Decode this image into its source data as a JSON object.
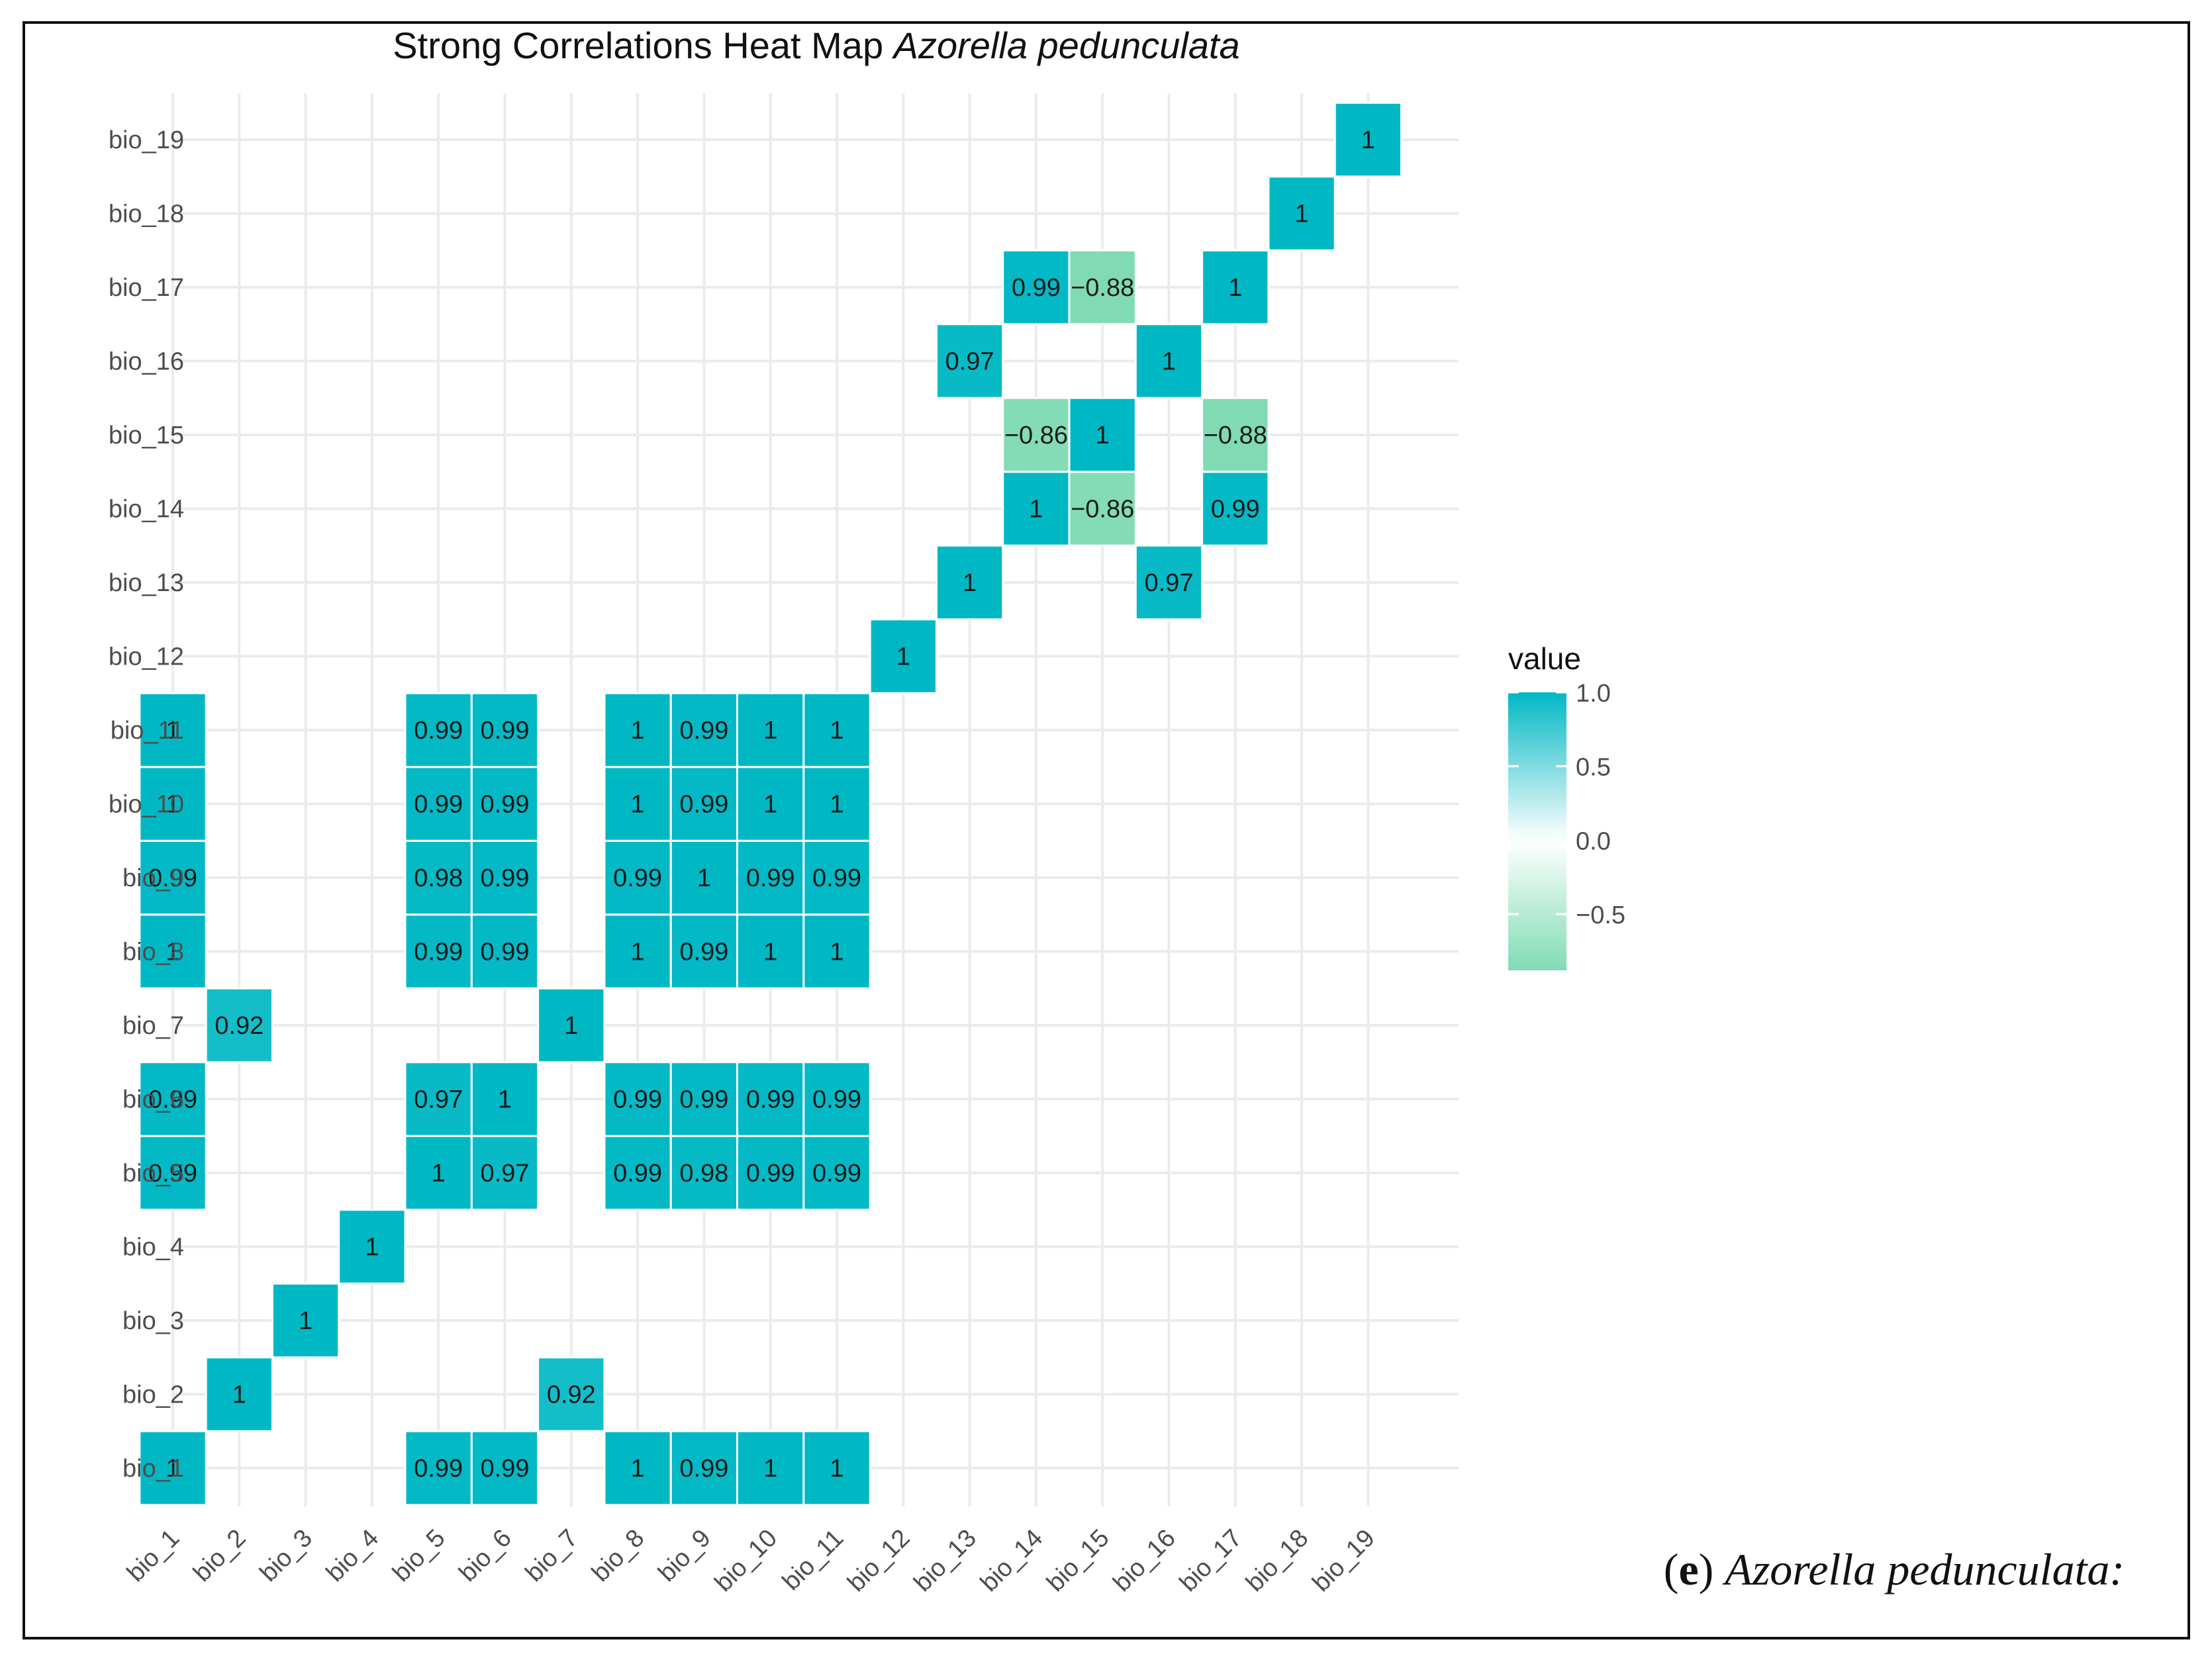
{
  "chart_data": {
    "type": "heatmap",
    "title_main": "Strong Correlations Heat Map ",
    "title_species": "Azorella pedunculata",
    "variables": [
      "bio_1",
      "bio_2",
      "bio_3",
      "bio_4",
      "bio_5",
      "bio_6",
      "bio_7",
      "bio_8",
      "bio_9",
      "bio_10",
      "bio_11",
      "bio_12",
      "bio_13",
      "bio_14",
      "bio_15",
      "bio_16",
      "bio_17",
      "bio_18",
      "bio_19"
    ],
    "cells": [
      {
        "x": "bio_1",
        "y": "bio_1",
        "value": 1,
        "label": "1"
      },
      {
        "x": "bio_5",
        "y": "bio_1",
        "value": 0.99,
        "label": "0.99"
      },
      {
        "x": "bio_6",
        "y": "bio_1",
        "value": 0.99,
        "label": "0.99"
      },
      {
        "x": "bio_8",
        "y": "bio_1",
        "value": 1,
        "label": "1"
      },
      {
        "x": "bio_9",
        "y": "bio_1",
        "value": 0.99,
        "label": "0.99"
      },
      {
        "x": "bio_10",
        "y": "bio_1",
        "value": 1,
        "label": "1"
      },
      {
        "x": "bio_11",
        "y": "bio_1",
        "value": 1,
        "label": "1"
      },
      {
        "x": "bio_2",
        "y": "bio_2",
        "value": 1,
        "label": "1"
      },
      {
        "x": "bio_7",
        "y": "bio_2",
        "value": 0.92,
        "label": "0.92"
      },
      {
        "x": "bio_3",
        "y": "bio_3",
        "value": 1,
        "label": "1"
      },
      {
        "x": "bio_4",
        "y": "bio_4",
        "value": 1,
        "label": "1"
      },
      {
        "x": "bio_1",
        "y": "bio_5",
        "value": 0.99,
        "label": "0.99"
      },
      {
        "x": "bio_5",
        "y": "bio_5",
        "value": 1,
        "label": "1"
      },
      {
        "x": "bio_6",
        "y": "bio_5",
        "value": 0.97,
        "label": "0.97"
      },
      {
        "x": "bio_8",
        "y": "bio_5",
        "value": 0.99,
        "label": "0.99"
      },
      {
        "x": "bio_9",
        "y": "bio_5",
        "value": 0.98,
        "label": "0.98"
      },
      {
        "x": "bio_10",
        "y": "bio_5",
        "value": 0.99,
        "label": "0.99"
      },
      {
        "x": "bio_11",
        "y": "bio_5",
        "value": 0.99,
        "label": "0.99"
      },
      {
        "x": "bio_1",
        "y": "bio_6",
        "value": 0.99,
        "label": "0.99"
      },
      {
        "x": "bio_5",
        "y": "bio_6",
        "value": 0.97,
        "label": "0.97"
      },
      {
        "x": "bio_6",
        "y": "bio_6",
        "value": 1,
        "label": "1"
      },
      {
        "x": "bio_8",
        "y": "bio_6",
        "value": 0.99,
        "label": "0.99"
      },
      {
        "x": "bio_9",
        "y": "bio_6",
        "value": 0.99,
        "label": "0.99"
      },
      {
        "x": "bio_10",
        "y": "bio_6",
        "value": 0.99,
        "label": "0.99"
      },
      {
        "x": "bio_11",
        "y": "bio_6",
        "value": 0.99,
        "label": "0.99"
      },
      {
        "x": "bio_2",
        "y": "bio_7",
        "value": 0.92,
        "label": "0.92"
      },
      {
        "x": "bio_7",
        "y": "bio_7",
        "value": 1,
        "label": "1"
      },
      {
        "x": "bio_1",
        "y": "bio_8",
        "value": 1,
        "label": "1"
      },
      {
        "x": "bio_5",
        "y": "bio_8",
        "value": 0.99,
        "label": "0.99"
      },
      {
        "x": "bio_6",
        "y": "bio_8",
        "value": 0.99,
        "label": "0.99"
      },
      {
        "x": "bio_8",
        "y": "bio_8",
        "value": 1,
        "label": "1"
      },
      {
        "x": "bio_9",
        "y": "bio_8",
        "value": 0.99,
        "label": "0.99"
      },
      {
        "x": "bio_10",
        "y": "bio_8",
        "value": 1,
        "label": "1"
      },
      {
        "x": "bio_11",
        "y": "bio_8",
        "value": 1,
        "label": "1"
      },
      {
        "x": "bio_1",
        "y": "bio_9",
        "value": 0.99,
        "label": "0.99"
      },
      {
        "x": "bio_5",
        "y": "bio_9",
        "value": 0.98,
        "label": "0.98"
      },
      {
        "x": "bio_6",
        "y": "bio_9",
        "value": 0.99,
        "label": "0.99"
      },
      {
        "x": "bio_8",
        "y": "bio_9",
        "value": 0.99,
        "label": "0.99"
      },
      {
        "x": "bio_9",
        "y": "bio_9",
        "value": 1,
        "label": "1"
      },
      {
        "x": "bio_10",
        "y": "bio_9",
        "value": 0.99,
        "label": "0.99"
      },
      {
        "x": "bio_11",
        "y": "bio_9",
        "value": 0.99,
        "label": "0.99"
      },
      {
        "x": "bio_1",
        "y": "bio_10",
        "value": 1,
        "label": "1"
      },
      {
        "x": "bio_5",
        "y": "bio_10",
        "value": 0.99,
        "label": "0.99"
      },
      {
        "x": "bio_6",
        "y": "bio_10",
        "value": 0.99,
        "label": "0.99"
      },
      {
        "x": "bio_8",
        "y": "bio_10",
        "value": 1,
        "label": "1"
      },
      {
        "x": "bio_9",
        "y": "bio_10",
        "value": 0.99,
        "label": "0.99"
      },
      {
        "x": "bio_10",
        "y": "bio_10",
        "value": 1,
        "label": "1"
      },
      {
        "x": "bio_11",
        "y": "bio_10",
        "value": 1,
        "label": "1"
      },
      {
        "x": "bio_1",
        "y": "bio_11",
        "value": 1,
        "label": "1"
      },
      {
        "x": "bio_5",
        "y": "bio_11",
        "value": 0.99,
        "label": "0.99"
      },
      {
        "x": "bio_6",
        "y": "bio_11",
        "value": 0.99,
        "label": "0.99"
      },
      {
        "x": "bio_8",
        "y": "bio_11",
        "value": 1,
        "label": "1"
      },
      {
        "x": "bio_9",
        "y": "bio_11",
        "value": 0.99,
        "label": "0.99"
      },
      {
        "x": "bio_10",
        "y": "bio_11",
        "value": 1,
        "label": "1"
      },
      {
        "x": "bio_11",
        "y": "bio_11",
        "value": 1,
        "label": "1"
      },
      {
        "x": "bio_12",
        "y": "bio_12",
        "value": 1,
        "label": "1"
      },
      {
        "x": "bio_13",
        "y": "bio_13",
        "value": 1,
        "label": "1"
      },
      {
        "x": "bio_16",
        "y": "bio_13",
        "value": 0.97,
        "label": "0.97"
      },
      {
        "x": "bio_14",
        "y": "bio_14",
        "value": 1,
        "label": "1"
      },
      {
        "x": "bio_15",
        "y": "bio_14",
        "value": -0.86,
        "label": "−0.86"
      },
      {
        "x": "bio_17",
        "y": "bio_14",
        "value": 0.99,
        "label": "0.99"
      },
      {
        "x": "bio_14",
        "y": "bio_15",
        "value": -0.86,
        "label": "−0.86"
      },
      {
        "x": "bio_15",
        "y": "bio_15",
        "value": 1,
        "label": "1"
      },
      {
        "x": "bio_17",
        "y": "bio_15",
        "value": -0.88,
        "label": "−0.88"
      },
      {
        "x": "bio_13",
        "y": "bio_16",
        "value": 0.97,
        "label": "0.97"
      },
      {
        "x": "bio_16",
        "y": "bio_16",
        "value": 1,
        "label": "1"
      },
      {
        "x": "bio_14",
        "y": "bio_17",
        "value": 0.99,
        "label": "0.99"
      },
      {
        "x": "bio_15",
        "y": "bio_17",
        "value": -0.88,
        "label": "−0.88"
      },
      {
        "x": "bio_17",
        "y": "bio_17",
        "value": 1,
        "label": "1"
      },
      {
        "x": "bio_18",
        "y": "bio_18",
        "value": 1,
        "label": "1"
      },
      {
        "x": "bio_19",
        "y": "bio_19",
        "value": 1,
        "label": "1"
      }
    ],
    "legend": {
      "title": "value",
      "ticks": [
        {
          "value": 1.0,
          "label": "1.0"
        },
        {
          "value": 0.5,
          "label": "0.5"
        },
        {
          "value": 0.0,
          "label": "0.0"
        },
        {
          "value": -0.5,
          "label": "−0.5"
        }
      ],
      "range": [
        -0.88,
        1.0
      ],
      "placement": "right"
    },
    "colors": {
      "high": "#00b8c4",
      "mid": "#ffffff",
      "low": "#80dbb4",
      "grid": "#ebebeb",
      "text": "#1a1a1a"
    }
  },
  "caption": {
    "label": "e",
    "species": "Azorella pedunculata:"
  }
}
